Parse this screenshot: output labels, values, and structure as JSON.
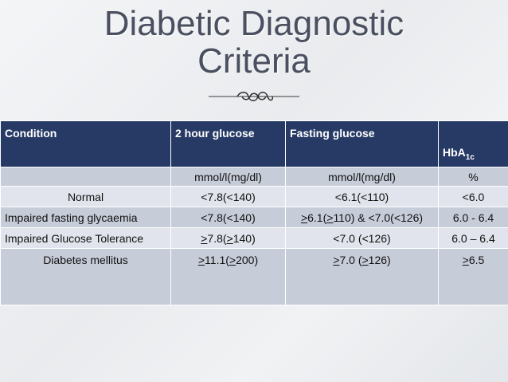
{
  "title": {
    "line1": "Diabetic Diagnostic",
    "line2": "Criteria"
  },
  "ornament_icon": "scroll-flourish-icon",
  "table": {
    "headers": {
      "condition": "Condition",
      "two_hour": "2 hour glucose",
      "fasting": "Fasting glucose",
      "hba_main": "HbA",
      "hba_sub": "1c"
    },
    "units": {
      "condition": "",
      "two_hour": "mmol/l(mg/dl)",
      "fasting": "mmol/l(mg/dl)",
      "hba1c": "%"
    },
    "rows": [
      {
        "condition": "Normal",
        "two_hour": "<7.8(<140)",
        "fasting": "<6.1(<110)",
        "hba1c": "<6.0"
      },
      {
        "condition": "Impaired fasting glycaemia",
        "two_hour": "<7.8(<140)",
        "fasting_a": ">",
        "fasting_b": "6.1(",
        "fasting_c": ">",
        "fasting_d": "110) & <7.0(<126)",
        "hba1c": "6.0 - 6.4"
      },
      {
        "condition": "Impaired Glucose Tolerance",
        "two_hour_a": ">",
        "two_hour_b": "7.8(",
        "two_hour_c": ">",
        "two_hour_d": "140)",
        "fasting": "<7.0 (<126)",
        "hba1c": "6.0 – 6.4"
      },
      {
        "condition": "Diabetes mellitus",
        "two_hour_a": ">",
        "two_hour_b": "11.1(",
        "two_hour_c": ">",
        "two_hour_d": "200)",
        "fasting_a": ">",
        "fasting_b": "7.0 (",
        "fasting_c": ">",
        "fasting_d": "126)",
        "hba1c_a": ">",
        "hba1c_b": "6.5"
      }
    ]
  }
}
